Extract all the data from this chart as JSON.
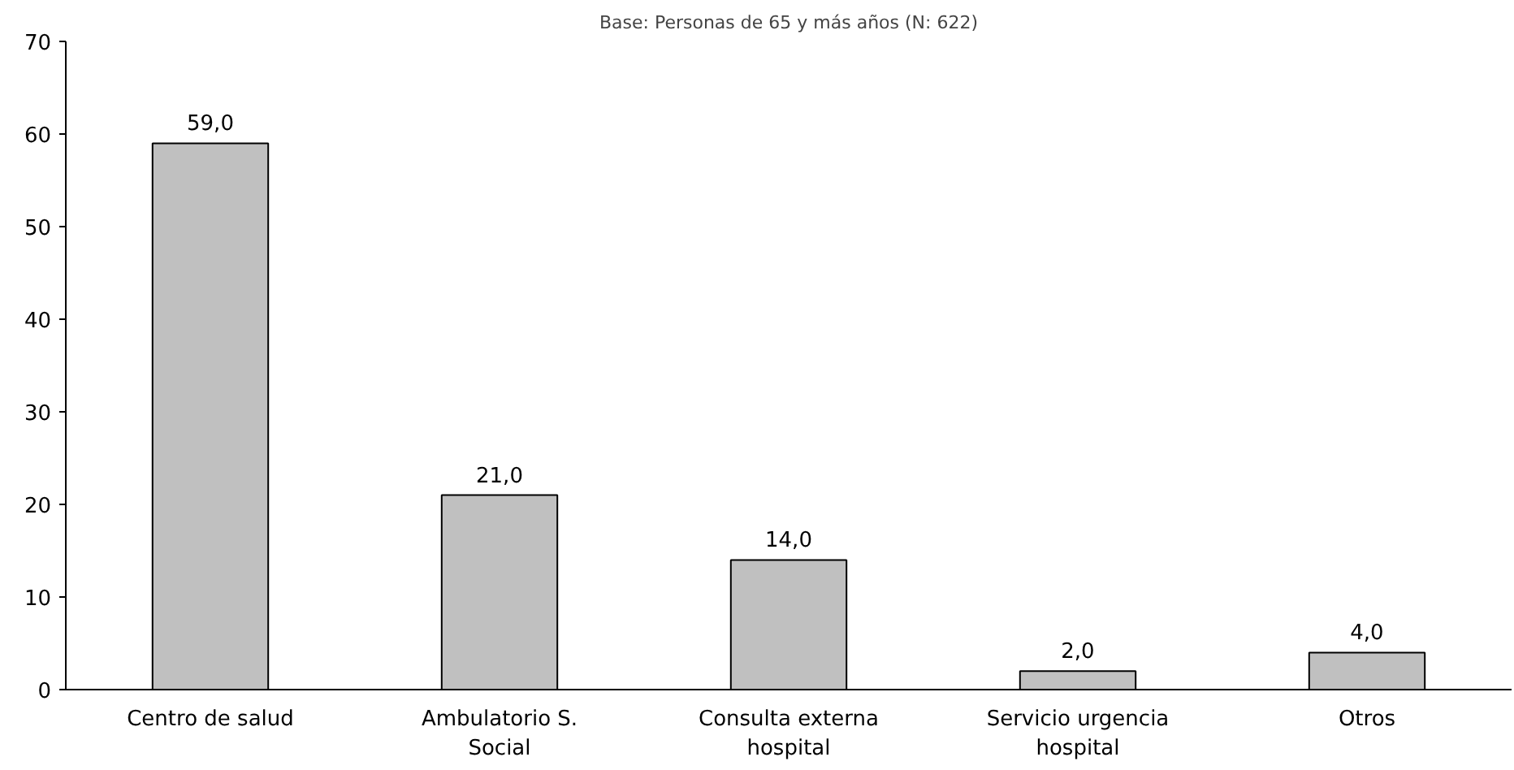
{
  "chart_data": {
    "type": "bar",
    "subtitle": "Base: Personas de 65 y más años (N: 622)",
    "categories": [
      "Centro de salud",
      "Ambulatorio S. Social",
      "Consulta externa hospital",
      "Servicio urgencia hospital",
      "Otros"
    ],
    "values": [
      59.0,
      21.0,
      14.0,
      2.0,
      4.0
    ],
    "value_labels": [
      "59,0",
      "21,0",
      "14,0",
      "2,0",
      "4,0"
    ],
    "color": "#c0c0c0",
    "ylim": [
      0,
      70
    ],
    "yticks": [
      0,
      10,
      20,
      30,
      40,
      50,
      60,
      70
    ],
    "grid": false
  }
}
